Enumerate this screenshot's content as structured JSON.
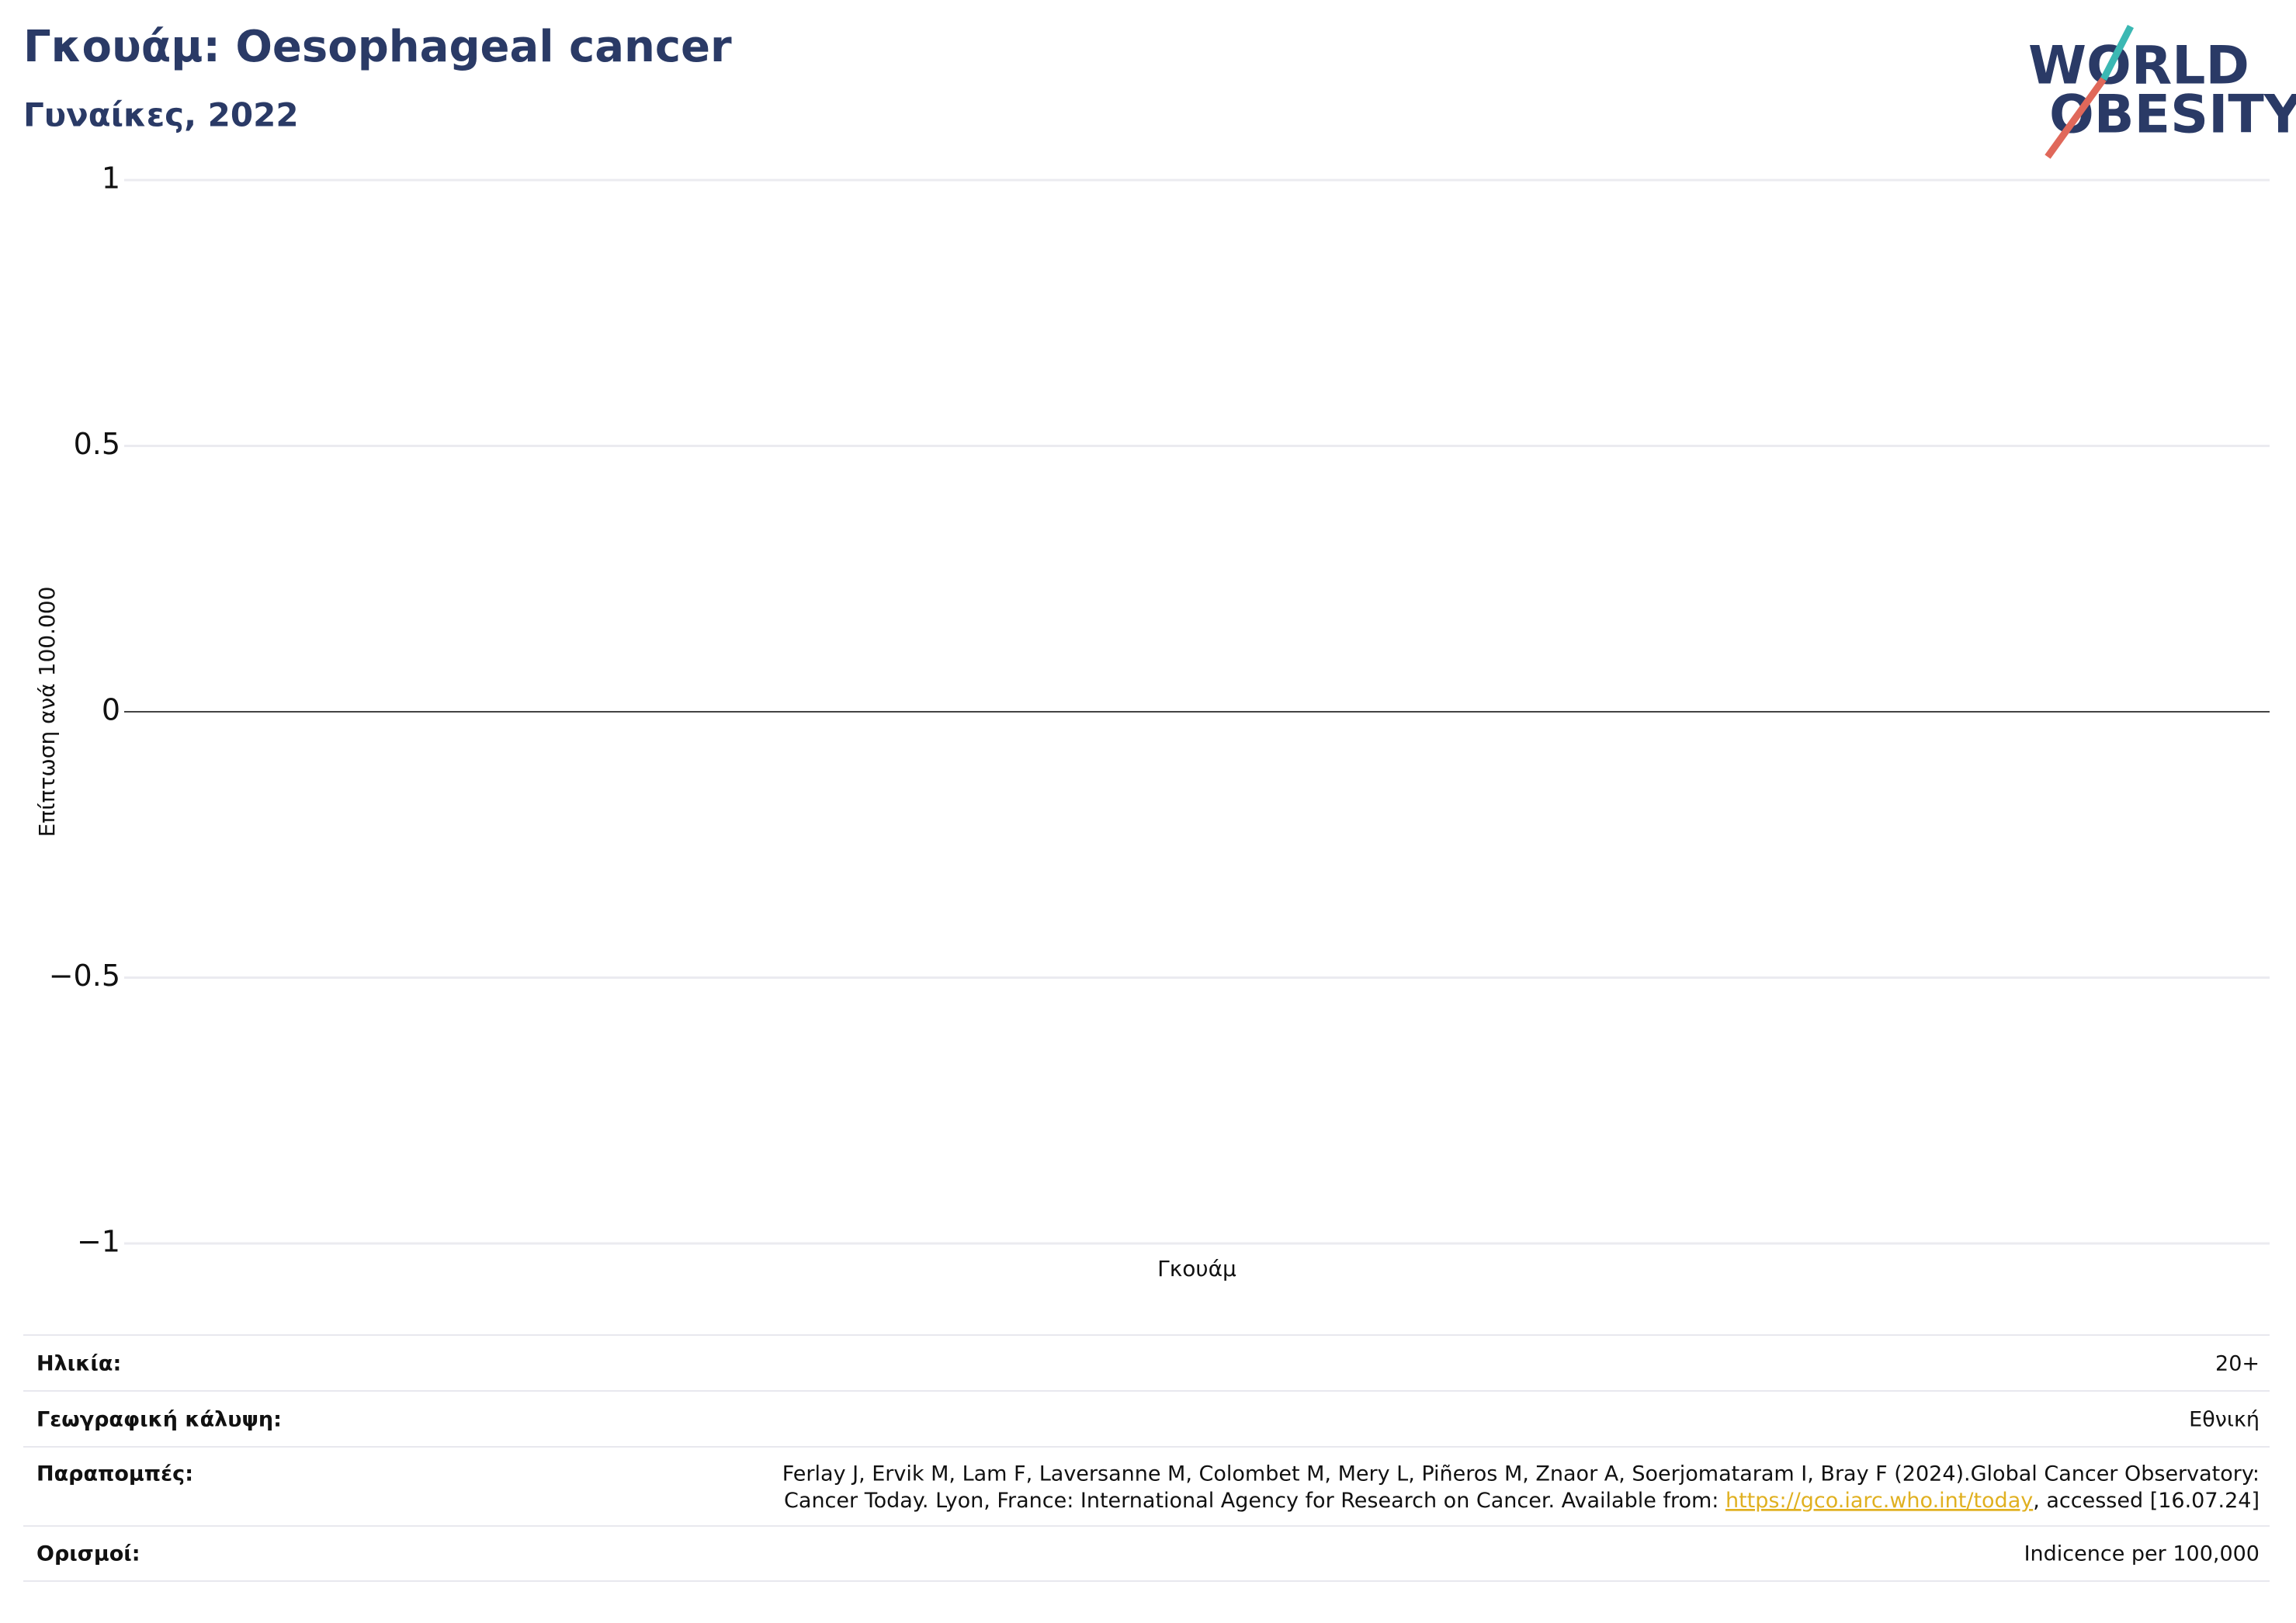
{
  "chart_data": {
    "type": "bar",
    "title": "Γκουάμ: Oesophageal cancer",
    "subtitle": "Γυναίκες, 2022",
    "y_label": "Επίπτωση ανά 100.000",
    "categories": [
      "Γκουάμ"
    ],
    "values": [
      0
    ],
    "color": "#2a3a66",
    "ylim": [
      -1,
      1
    ],
    "yticks": [
      {
        "value": -1,
        "label": "−1"
      },
      {
        "value": -0.5,
        "label": "−0.5"
      },
      0,
      0.5,
      1
    ],
    "grid": true
  },
  "logo": {
    "line1": "WORLD",
    "line2": "OBESITY"
  },
  "info": {
    "rows": [
      {
        "label": "Ηλικία:",
        "value": "20+"
      },
      {
        "label": "Γεωγραφική κάλυψη:",
        "value": "Εθνική"
      },
      {
        "label": "Παραπομπές:",
        "value_line1": "Ferlay J, Ervik M, Lam F, Laversanne M, Colombet M, Mery L, Piñeros M, Znaor A, Soerjomataram I, Bray F (2024).Global Cancer Observatory:",
        "value_line2_before": "Cancer Today. Lyon, France: International Agency for Research on Cancer. Available from: ",
        "link": "https://gco.iarc.who.int/today",
        "value_line2_after": ", accessed [16.07.24]"
      },
      {
        "label": "Ορισμοί:",
        "value": "Indicence per 100,000"
      }
    ]
  }
}
